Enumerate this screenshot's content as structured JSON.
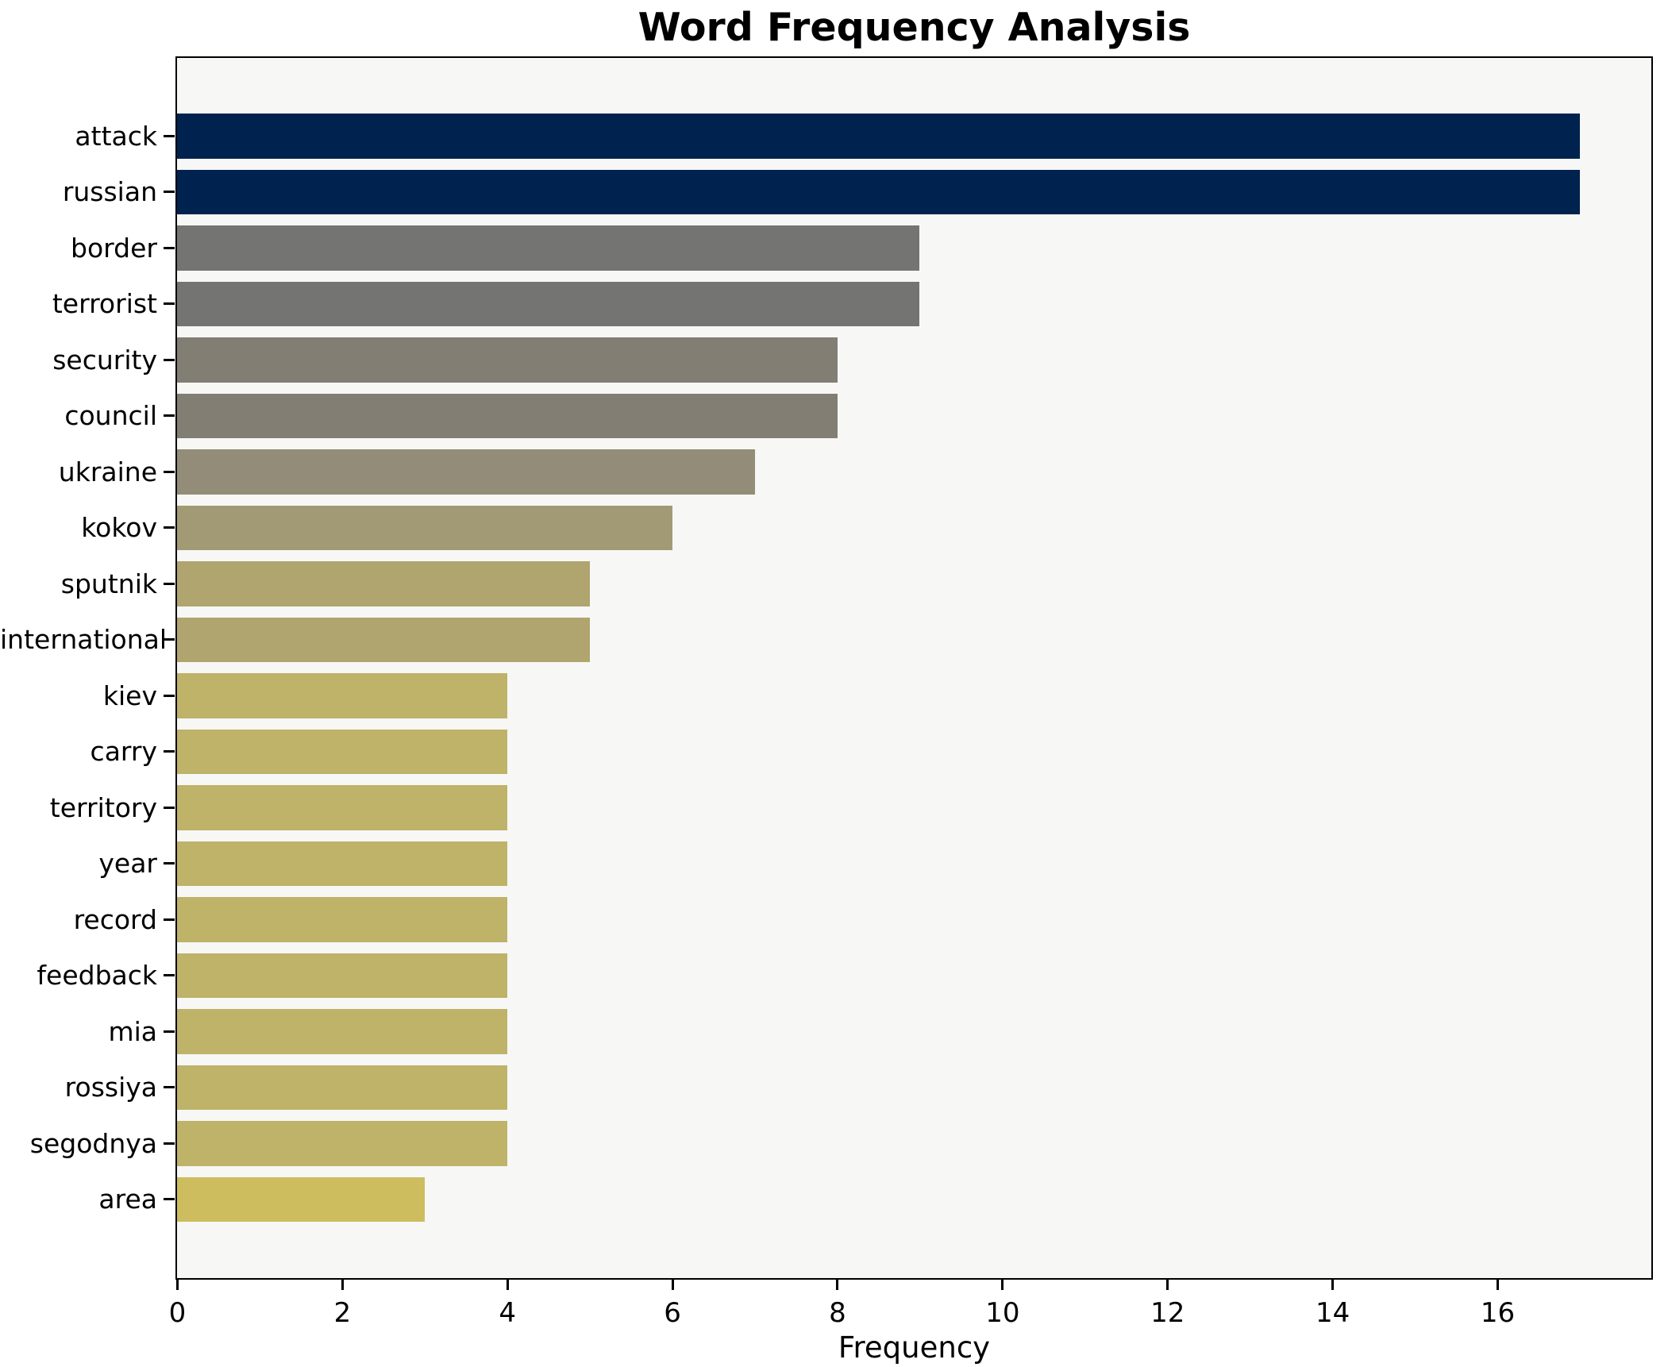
{
  "title": "Word Frequency Analysis",
  "chart_data": {
    "type": "bar",
    "orientation": "horizontal",
    "title": "Word Frequency Analysis",
    "xlabel": "Frequency",
    "ylabel": "",
    "grid": false,
    "legend": false,
    "xlim": [
      0,
      17.857
    ],
    "xticks": [
      0,
      2,
      4,
      6,
      8,
      10,
      12,
      14,
      16
    ],
    "categories": [
      "attack",
      "russian",
      "border",
      "terrorist",
      "security",
      "council",
      "ukraine",
      "kokov",
      "sputnik",
      "international",
      "kiev",
      "carry",
      "territory",
      "year",
      "record",
      "feedback",
      "mia",
      "rossiya",
      "segodnya",
      "area"
    ],
    "values": [
      17,
      17,
      9,
      9,
      8,
      8,
      7,
      6,
      5,
      5,
      4,
      4,
      4,
      4,
      4,
      4,
      4,
      4,
      4,
      3
    ],
    "bar_colors": [
      "#00224e",
      "#00224e",
      "#747473",
      "#747473",
      "#827e74",
      "#827e74",
      "#938c78",
      "#a29a75",
      "#b0a46f",
      "#b0a46f",
      "#bfb269",
      "#bfb269",
      "#bfb269",
      "#bfb269",
      "#bfb269",
      "#bfb269",
      "#bfb269",
      "#bfb269",
      "#bfb269",
      "#cdbd5e"
    ],
    "colors": {
      "figure_background": "#ffffff",
      "plot_background": "#f7f7f6",
      "spine": "#000000",
      "text": "#000000"
    }
  }
}
